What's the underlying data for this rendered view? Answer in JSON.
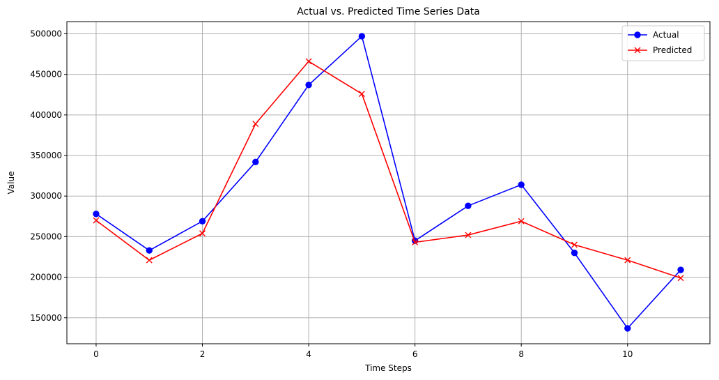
{
  "chart_data": {
    "type": "line",
    "title": "Actual vs. Predicted Time Series Data",
    "xlabel": "Time Steps",
    "ylabel": "Value",
    "x": [
      0,
      1,
      2,
      3,
      4,
      5,
      6,
      7,
      8,
      9,
      10,
      11
    ],
    "xlim": [
      -0.55,
      11.55
    ],
    "ylim": [
      118000,
      515000
    ],
    "xticks": [
      0,
      2,
      4,
      6,
      8,
      10
    ],
    "yticks": [
      150000,
      200000,
      250000,
      300000,
      350000,
      400000,
      450000,
      500000
    ],
    "grid": true,
    "legend_position": "top-right",
    "series": [
      {
        "name": "Actual",
        "color": "#0000ff",
        "marker": "circle",
        "values": [
          278000,
          233000,
          269000,
          342000,
          437000,
          497000,
          245000,
          288000,
          314000,
          230000,
          137000,
          209000
        ]
      },
      {
        "name": "Predicted",
        "color": "#ff0000",
        "marker": "x",
        "values": [
          270000,
          221000,
          254000,
          389000,
          466000,
          426000,
          243000,
          252000,
          269000,
          240000,
          221000,
          199000
        ]
      }
    ]
  }
}
